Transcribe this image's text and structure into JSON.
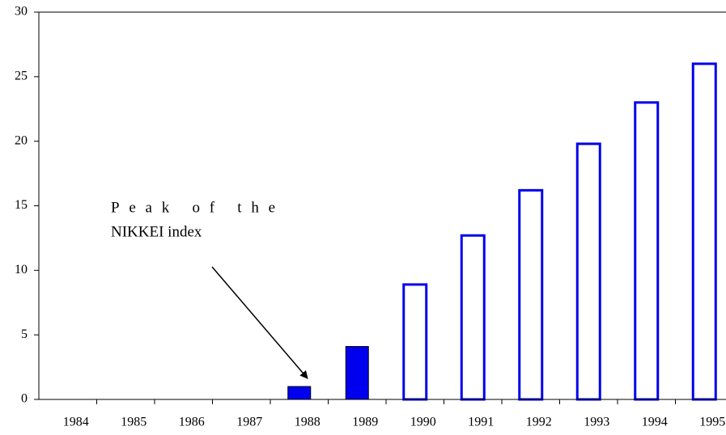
{
  "chart_data": {
    "type": "bar",
    "categories": [
      "1984",
      "1985",
      "1986",
      "1987",
      "1988",
      "1989",
      "1990",
      "1991",
      "1992",
      "1993",
      "1994",
      "1995"
    ],
    "values": [
      0,
      0,
      0,
      0,
      1,
      4.1,
      8.9,
      12.7,
      16.2,
      19.8,
      23,
      26
    ],
    "bar_styles": [
      "solid",
      "solid",
      "solid",
      "solid",
      "solid",
      "solid",
      "outline",
      "outline",
      "outline",
      "outline",
      "outline",
      "outline"
    ],
    "color": "#0000ee",
    "ylim": [
      0,
      30
    ],
    "yticks": [
      0,
      5,
      10,
      15,
      20,
      25,
      30
    ],
    "grid": false,
    "annotation": [
      "Peak of the",
      "NIKKEI index"
    ]
  }
}
